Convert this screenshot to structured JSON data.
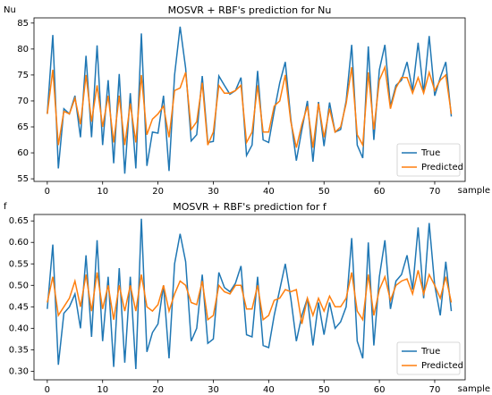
{
  "chart_data": [
    {
      "type": "line",
      "title": "MOSVR + RBF's prediction for Nu",
      "ylabel": "Nu",
      "xlabel": "sample",
      "x": [
        0,
        1,
        2,
        3,
        4,
        5,
        6,
        7,
        8,
        9,
        10,
        11,
        12,
        13,
        14,
        15,
        16,
        17,
        18,
        19,
        20,
        21,
        22,
        23,
        24,
        25,
        26,
        27,
        28,
        29,
        30,
        31,
        32,
        33,
        34,
        35,
        36,
        37,
        38,
        39,
        40,
        41,
        42,
        43,
        44,
        45,
        46,
        47,
        48,
        49,
        50,
        51,
        52,
        53,
        54,
        55,
        56,
        57,
        58,
        59,
        60,
        61,
        62,
        63,
        64,
        65,
        66,
        67,
        68,
        69,
        70,
        71,
        72,
        73
      ],
      "series": [
        {
          "name": "True",
          "color": "#1f77b4",
          "values": [
            67.5,
            82.7,
            57,
            68.5,
            67.5,
            71,
            63,
            78.7,
            63,
            80.7,
            61.5,
            74,
            58,
            75.2,
            56,
            71.5,
            57,
            83,
            57.5,
            64,
            63.8,
            71,
            56.5,
            75,
            84.3,
            76.3,
            62.3,
            63.5,
            74.8,
            62,
            62.2,
            74.8,
            73,
            71.3,
            72,
            74.5,
            59.5,
            61.5,
            75.8,
            62.5,
            62,
            68,
            73.5,
            77.5,
            66.5,
            58.5,
            64.5,
            70,
            58.3,
            69.8,
            61.3,
            69.7,
            64,
            64.5,
            70,
            80.8,
            61.5,
            59,
            80.5,
            62.5,
            76,
            80.8,
            69,
            73,
            74,
            77.5,
            72,
            81.2,
            71.5,
            82.5,
            71,
            74.5,
            77.5,
            67
          ]
        },
        {
          "name": "Predicted",
          "color": "#ff7f0e",
          "values": [
            67.5,
            76,
            61.5,
            68,
            67.5,
            70.5,
            65.5,
            75,
            66,
            73,
            65,
            71,
            62,
            71,
            61.5,
            69.5,
            62,
            75,
            63.5,
            66.5,
            67.5,
            69,
            63,
            72,
            72.5,
            75.5,
            64.5,
            66,
            73.5,
            61.5,
            64,
            73,
            71.5,
            71.5,
            72,
            73,
            62,
            64,
            73,
            64,
            64,
            69,
            70,
            75,
            66,
            61,
            65.5,
            69,
            61,
            69.5,
            63,
            68.5,
            64,
            65,
            69.5,
            76.5,
            63.5,
            61.5,
            75.5,
            64.5,
            74,
            76.5,
            68.5,
            72.5,
            74.5,
            74.5,
            71.5,
            74.5,
            71.5,
            75.5,
            72,
            74,
            75,
            67.5
          ]
        }
      ],
      "xlim": [
        -2.4,
        75.5
      ],
      "xticks": [
        0,
        10,
        20,
        30,
        40,
        50,
        60,
        70
      ],
      "ylim": [
        54.5,
        86
      ],
      "yticks": [
        55,
        60,
        65,
        70,
        75,
        80,
        85
      ],
      "legend": "lower right"
    },
    {
      "type": "line",
      "title": "MOSVR + RBF's prediction for f",
      "ylabel": "f",
      "xlabel": "sample",
      "x": [
        0,
        1,
        2,
        3,
        4,
        5,
        6,
        7,
        8,
        9,
        10,
        11,
        12,
        13,
        14,
        15,
        16,
        17,
        18,
        19,
        20,
        21,
        22,
        23,
        24,
        25,
        26,
        27,
        28,
        29,
        30,
        31,
        32,
        33,
        34,
        35,
        36,
        37,
        38,
        39,
        40,
        41,
        42,
        43,
        44,
        45,
        46,
        47,
        48,
        49,
        50,
        51,
        52,
        53,
        54,
        55,
        56,
        57,
        58,
        59,
        60,
        61,
        62,
        63,
        64,
        65,
        66,
        67,
        68,
        69,
        70,
        71,
        72,
        73
      ],
      "series": [
        {
          "name": "True",
          "color": "#1f77b4",
          "values": [
            0.445,
            0.595,
            0.315,
            0.435,
            0.45,
            0.48,
            0.4,
            0.57,
            0.38,
            0.605,
            0.37,
            0.52,
            0.31,
            0.54,
            0.32,
            0.52,
            0.305,
            0.655,
            0.345,
            0.39,
            0.41,
            0.5,
            0.33,
            0.55,
            0.62,
            0.555,
            0.37,
            0.4,
            0.525,
            0.365,
            0.375,
            0.53,
            0.495,
            0.485,
            0.505,
            0.545,
            0.385,
            0.38,
            0.52,
            0.36,
            0.355,
            0.43,
            0.49,
            0.55,
            0.47,
            0.37,
            0.43,
            0.47,
            0.36,
            0.46,
            0.385,
            0.46,
            0.4,
            0.415,
            0.45,
            0.61,
            0.37,
            0.33,
            0.6,
            0.36,
            0.52,
            0.605,
            0.445,
            0.51,
            0.525,
            0.57,
            0.49,
            0.635,
            0.47,
            0.645,
            0.5,
            0.43,
            0.555,
            0.44
          ]
        },
        {
          "name": "Predicted",
          "color": "#ff7f0e",
          "values": [
            0.46,
            0.52,
            0.43,
            0.45,
            0.47,
            0.51,
            0.45,
            0.525,
            0.44,
            0.53,
            0.445,
            0.5,
            0.42,
            0.5,
            0.44,
            0.5,
            0.44,
            0.525,
            0.45,
            0.44,
            0.455,
            0.5,
            0.44,
            0.48,
            0.51,
            0.5,
            0.46,
            0.455,
            0.51,
            0.42,
            0.43,
            0.5,
            0.485,
            0.48,
            0.5,
            0.5,
            0.445,
            0.445,
            0.5,
            0.42,
            0.43,
            0.465,
            0.47,
            0.49,
            0.485,
            0.49,
            0.41,
            0.47,
            0.43,
            0.47,
            0.44,
            0.475,
            0.45,
            0.45,
            0.47,
            0.53,
            0.44,
            0.42,
            0.525,
            0.43,
            0.49,
            0.52,
            0.465,
            0.5,
            0.51,
            0.515,
            0.48,
            0.535,
            0.48,
            0.525,
            0.5,
            0.47,
            0.52,
            0.46
          ]
        }
      ],
      "xlim": [
        -2.4,
        75.5
      ],
      "xticks": [
        0,
        10,
        20,
        30,
        40,
        50,
        60,
        70
      ],
      "ylim": [
        0.28,
        0.665
      ],
      "yticks": [
        {
          "value": 0.3,
          "label": "0.30"
        },
        0.35,
        {
          "value": 0.4,
          "label": "0.40"
        },
        0.45,
        {
          "value": 0.5,
          "label": "0.50"
        },
        0.55,
        {
          "value": 0.6,
          "label": "0.60"
        },
        0.65
      ],
      "legend": "lower right"
    }
  ]
}
